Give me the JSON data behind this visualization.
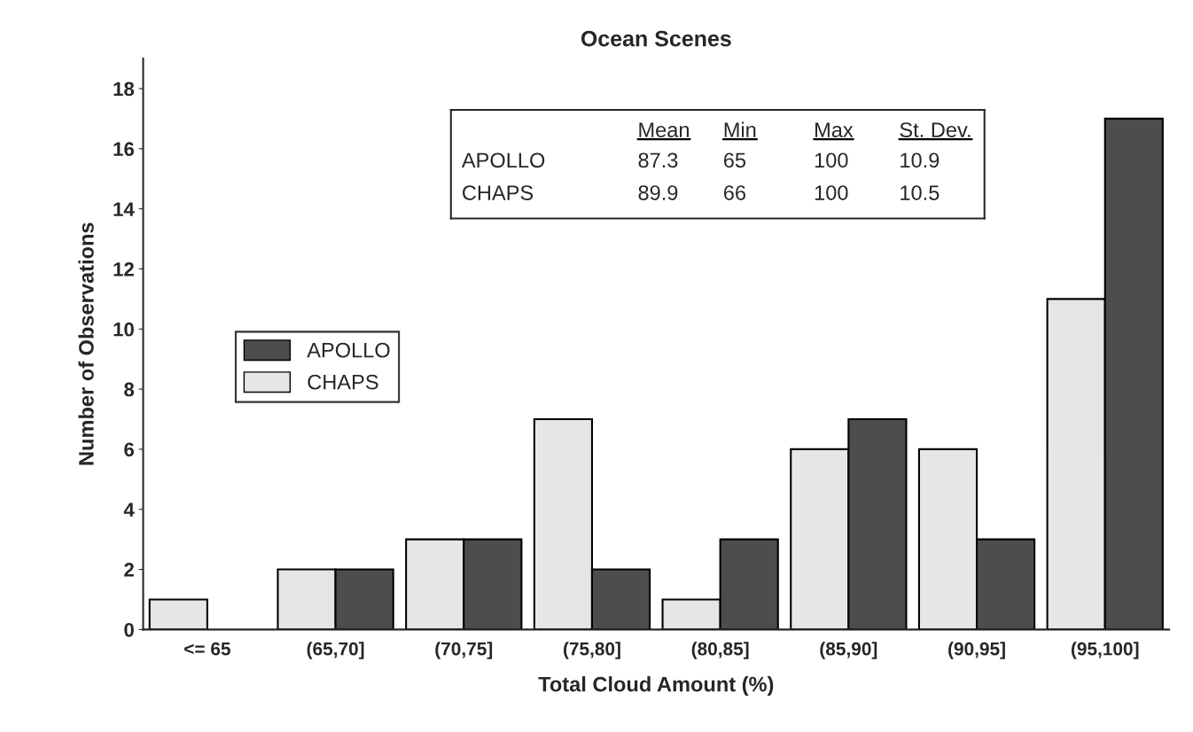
{
  "chart_data": {
    "type": "bar",
    "title": "Ocean Scenes",
    "xlabel": "Total Cloud Amount (%)",
    "ylabel": "Number of Observations",
    "categories": [
      "<= 65",
      "(65,70]",
      "(70,75]",
      "(75,80]",
      "(80,85]",
      "(85,90]",
      "(90,95]",
      "(95,100]"
    ],
    "series": [
      {
        "name": "CHAPS",
        "color": "#e6e6e6",
        "values": [
          1,
          2,
          3,
          7,
          1,
          6,
          6,
          11
        ]
      },
      {
        "name": "APOLLO",
        "color": "#4d4d4d",
        "values": [
          0,
          2,
          3,
          2,
          3,
          7,
          3,
          17
        ]
      }
    ],
    "ylim": [
      0,
      19
    ],
    "yticks": [
      0,
      2,
      4,
      6,
      8,
      10,
      12,
      14,
      16,
      18
    ],
    "grid": false,
    "legend": "left",
    "annotations": [
      "Mean",
      "Min",
      "Max",
      "St. Dev.",
      "APOLLO",
      "87.3",
      "65",
      "100",
      "10.9",
      "CHAPS",
      "89.9",
      "66",
      "100",
      "10.5"
    ]
  }
}
